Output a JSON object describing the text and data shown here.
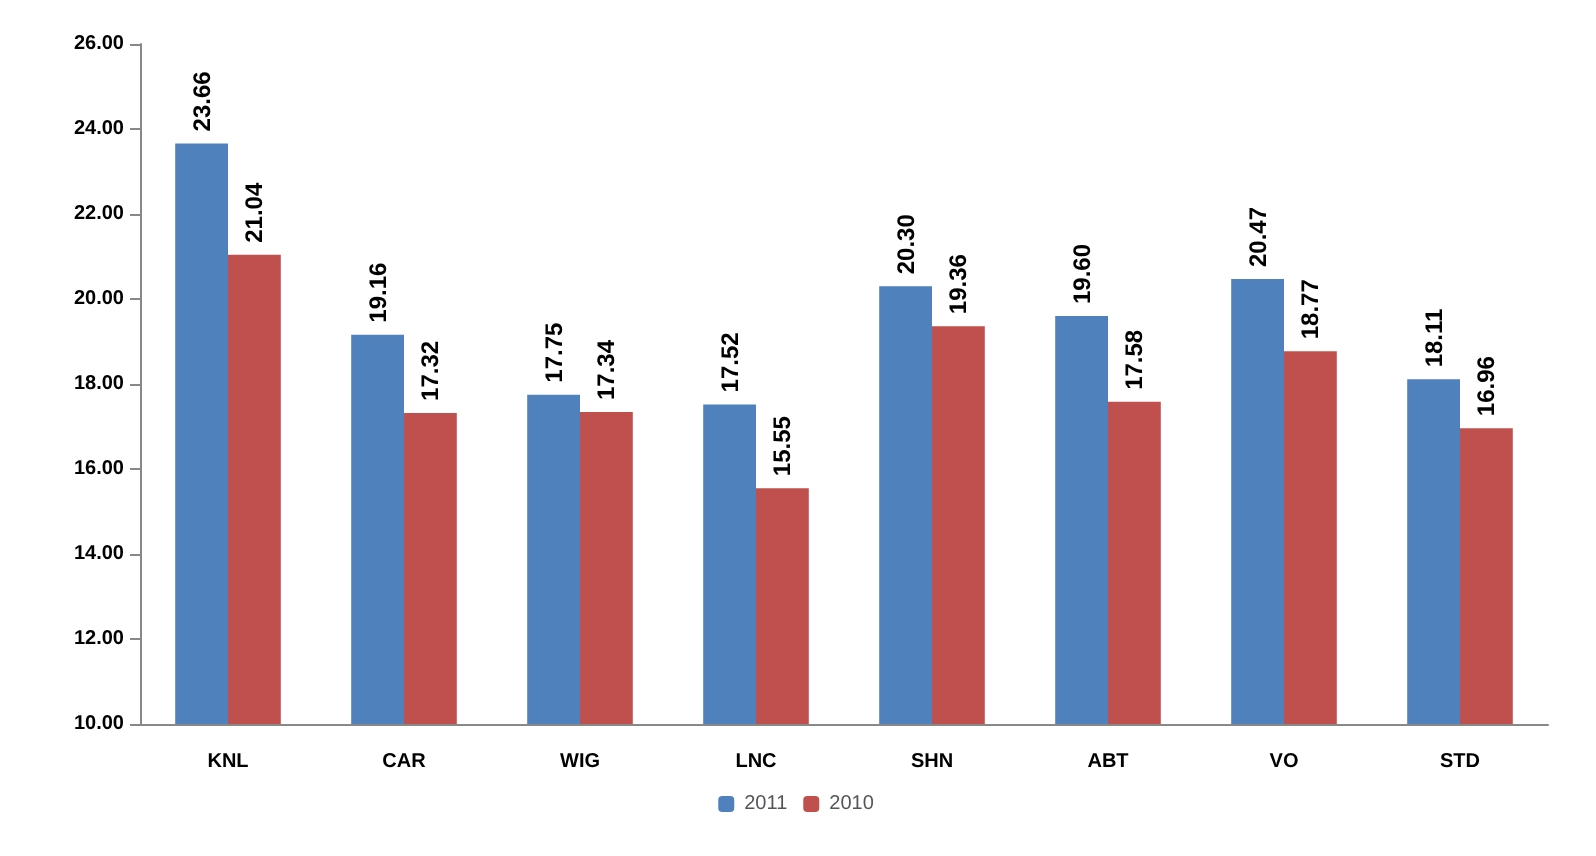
{
  "chart_data": {
    "type": "bar",
    "categories": [
      "KNL",
      "CAR",
      "WIG",
      "LNC",
      "SHN",
      "ABT",
      "VO",
      "STD"
    ],
    "series": [
      {
        "name": "2011",
        "color": "#4f81bd",
        "values": [
          23.66,
          19.16,
          17.75,
          17.52,
          20.3,
          19.6,
          20.47,
          18.11
        ],
        "value_labels": [
          "23.66",
          "19.16",
          "17.75",
          "17.52",
          "20.30",
          "19.60",
          "20.47",
          "18.11"
        ]
      },
      {
        "name": "2010",
        "color": "#c0504d",
        "values": [
          21.04,
          17.32,
          17.34,
          15.55,
          19.36,
          17.58,
          18.77,
          16.96
        ],
        "value_labels": [
          "21.04",
          "17.32",
          "17.34",
          "15.55",
          "19.36",
          "17.58",
          "18.77",
          "16.96"
        ]
      }
    ],
    "ylim": [
      10,
      26
    ],
    "yticks": [
      {
        "value": 10,
        "label": "10.00"
      },
      {
        "value": 12,
        "label": "12.00"
      },
      {
        "value": 14,
        "label": "14.00"
      },
      {
        "value": 16,
        "label": "16.00"
      },
      {
        "value": 18,
        "label": "18.00"
      },
      {
        "value": 20,
        "label": "20.00"
      },
      {
        "value": 22,
        "label": "22.00"
      },
      {
        "value": 24,
        "label": "24.00"
      },
      {
        "value": 26,
        "label": "26.00"
      }
    ],
    "grid": false,
    "legend": "bottom"
  }
}
